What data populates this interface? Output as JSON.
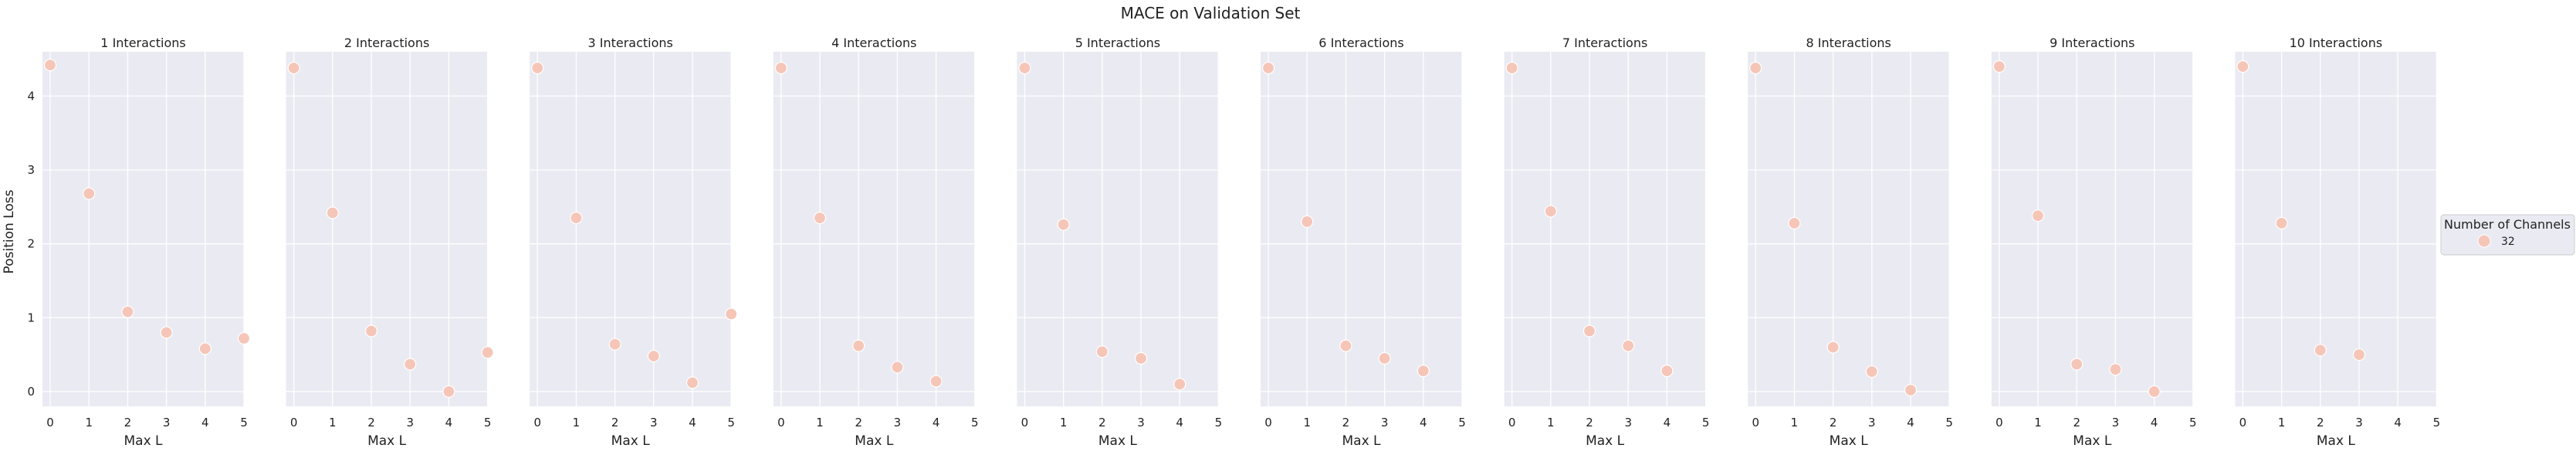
{
  "chart_data": {
    "type": "scatter",
    "title": "MACE on Validation Set",
    "xlabel": "Max L",
    "ylabel": "Position Loss",
    "xlim": [
      -0.2,
      5.0
    ],
    "ylim": [
      -0.2,
      4.6
    ],
    "x_ticks": [
      0,
      1,
      2,
      3,
      4,
      5
    ],
    "y_ticks": [
      0,
      1,
      2,
      3,
      4
    ],
    "grid": true,
    "legend": {
      "title": "Number of Channels",
      "entries": [
        "32"
      ],
      "placement": "right",
      "color": "#f5c6b8"
    },
    "colors": {
      "panel_background": "#eaeaf2",
      "grid": "#ffffff",
      "point_fill": "#f5c6b8",
      "point_edge": "#ffffff"
    },
    "panels": [
      {
        "title": "1 Interactions",
        "x": [
          0,
          1,
          2,
          3,
          4,
          5
        ],
        "y": [
          4.42,
          2.68,
          1.08,
          0.8,
          0.58,
          0.72
        ]
      },
      {
        "title": "2 Interactions",
        "x": [
          0,
          1,
          2,
          3,
          4,
          5
        ],
        "y": [
          4.38,
          2.42,
          0.82,
          0.37,
          0.0,
          0.53
        ]
      },
      {
        "title": "3 Interactions",
        "x": [
          0,
          1,
          2,
          3,
          4,
          5
        ],
        "y": [
          4.38,
          2.35,
          0.64,
          0.48,
          0.12,
          1.05
        ]
      },
      {
        "title": "4 Interactions",
        "x": [
          0,
          1,
          2,
          3,
          4
        ],
        "y": [
          4.38,
          2.35,
          0.62,
          0.33,
          0.14
        ]
      },
      {
        "title": "5 Interactions",
        "x": [
          0,
          1,
          2,
          3,
          4
        ],
        "y": [
          4.38,
          2.26,
          0.54,
          0.45,
          0.1
        ]
      },
      {
        "title": "6 Interactions",
        "x": [
          0,
          1,
          2,
          3,
          4
        ],
        "y": [
          4.38,
          2.3,
          0.62,
          0.45,
          0.28
        ]
      },
      {
        "title": "7 Interactions",
        "x": [
          0,
          1,
          2,
          3,
          4
        ],
        "y": [
          4.38,
          2.44,
          0.82,
          0.62,
          0.28
        ]
      },
      {
        "title": "8 Interactions",
        "x": [
          0,
          1,
          2,
          3,
          4
        ],
        "y": [
          4.38,
          2.28,
          0.6,
          0.27,
          0.02
        ]
      },
      {
        "title": "9 Interactions",
        "x": [
          0,
          1,
          2,
          3,
          4
        ],
        "y": [
          4.4,
          2.38,
          0.37,
          0.3,
          0.0
        ]
      },
      {
        "title": "10 Interactions",
        "x": [
          0,
          1,
          2,
          3
        ],
        "y": [
          4.4,
          2.28,
          0.56,
          0.5
        ]
      }
    ]
  }
}
